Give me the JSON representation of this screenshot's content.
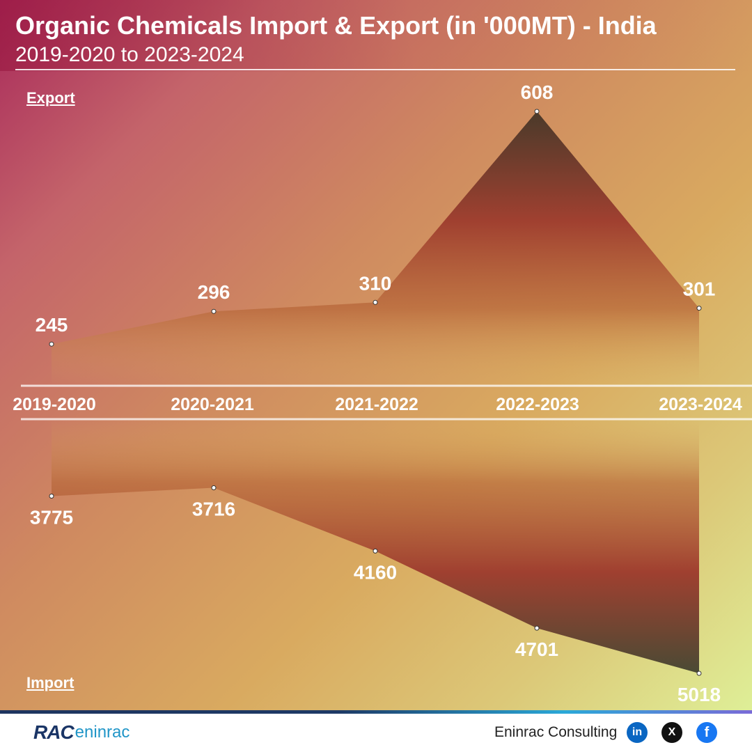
{
  "header": {
    "title": "Organic Chemicals Import & Export (in '000MT) - India",
    "subtitle": "2019-2020 to 2023-2024"
  },
  "labels": {
    "export": "Export",
    "import": "Import"
  },
  "chart_data": {
    "type": "area",
    "title": "Organic Chemicals Import & Export (in '000MT) - India",
    "subtitle": "2019-2020 to 2023-2024",
    "categories": [
      "2019-2020",
      "2020-2021",
      "2021-2022",
      "2022-2023",
      "2023-2024"
    ],
    "series": [
      {
        "name": "Export",
        "values": [
          245,
          296,
          310,
          608,
          301
        ]
      },
      {
        "name": "Import",
        "values": [
          3775,
          3716,
          4160,
          4701,
          5018
        ]
      }
    ],
    "ylim_export": [
      0,
      608
    ],
    "ylim_import": [
      0,
      5018
    ],
    "legend": "none",
    "grid": false
  },
  "footer": {
    "brand_rac": "RAC",
    "brand_name": "eninrac",
    "company": "Eninrac Consulting",
    "social": {
      "linkedin": "in",
      "x": "X",
      "facebook": "f"
    }
  },
  "colors": {
    "area_dark": "#4a3a2a",
    "area_mid": "#a04030",
    "text": "#ffffff",
    "footer_accent": "#1e3560"
  }
}
